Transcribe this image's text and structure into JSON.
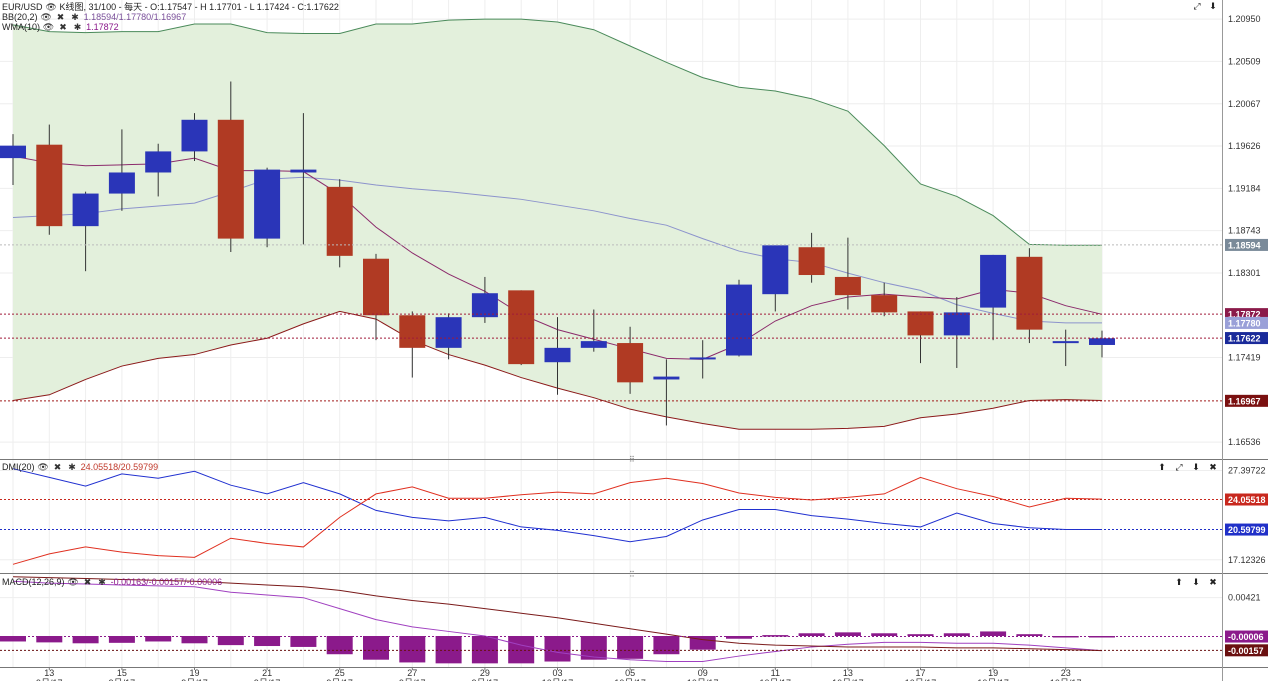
{
  "header": {
    "symbol": "EUR/USD",
    "info": "K线图, 31/100 - 每天 - O:1.17547 - H 1.17701 - L 1.17424 - C:1.17622",
    "bb_name": "BB(20,2)",
    "bb_values": "1.18594/1.17780/1.16967",
    "wma_name": "WMA(10)",
    "wma_value": "1.17872"
  },
  "dmi_header": {
    "name": "DMI(20)",
    "values": "24.05518/20.59799"
  },
  "macd_header": {
    "name": "MACD(12,26,9)",
    "values": "-0.00163/-0.00157/-0.00006"
  },
  "colors": {
    "bull": "#2a35b8",
    "bear": "#b03a23",
    "band_fill": "#e3f0dc",
    "band_line": "#4a8a5a",
    "bb_mid": "#8c93cc",
    "bb_low": "#8b1a1a",
    "wma": "#8b2a6b",
    "dmi_plus": "#e03020",
    "dmi_minus": "#2030d0",
    "macd_hist": "#8b1a8b",
    "macd_line": "#a040c0",
    "macd_signal": "#7a1a1a"
  },
  "chart_data": [
    {
      "type": "candlestick",
      "title": "EUR/USD",
      "ylim": [
        1.1636,
        1.2115
      ],
      "yticks": [
        "1.20950",
        "1.20509",
        "1.20067",
        "1.19626",
        "1.19184",
        "1.18743",
        "1.18301",
        "1.17419",
        "1.16536"
      ],
      "price_tags": [
        {
          "label": "1.18594",
          "style": "gray"
        },
        {
          "label": "1.17872",
          "style": "wma"
        },
        {
          "label": "1.17780",
          "style": "mid"
        },
        {
          "label": "1.17622",
          "style": "last"
        },
        {
          "label": "1.16967",
          "style": "low"
        }
      ],
      "x_labels": [
        {
          "day": "13",
          "month": "9月/17"
        },
        {
          "day": "15",
          "month": "9月/17"
        },
        {
          "day": "19",
          "month": "9月/17"
        },
        {
          "day": "21",
          "month": "9月/17"
        },
        {
          "day": "25",
          "month": "9月/17"
        },
        {
          "day": "27",
          "month": "9月/17"
        },
        {
          "day": "29",
          "month": "9月/17"
        },
        {
          "day": "03",
          "month": "10月/17"
        },
        {
          "day": "05",
          "month": "10月/17"
        },
        {
          "day": "09",
          "month": "10月/17"
        },
        {
          "day": "11",
          "month": "10月/17"
        },
        {
          "day": "13",
          "month": "10月/17"
        },
        {
          "day": "17",
          "month": "10月/17"
        },
        {
          "day": "19",
          "month": "10月/17"
        },
        {
          "day": "23",
          "month": "10月/17"
        }
      ],
      "candles": [
        {
          "o": 1.195,
          "h": 1.1975,
          "l": 1.1922,
          "c": 1.1963
        },
        {
          "o": 1.1964,
          "h": 1.1985,
          "l": 1.187,
          "c": 1.1879
        },
        {
          "o": 1.1879,
          "h": 1.1915,
          "l": 1.1832,
          "c": 1.1913
        },
        {
          "o": 1.1913,
          "h": 1.198,
          "l": 1.1895,
          "c": 1.1935
        },
        {
          "o": 1.1935,
          "h": 1.1965,
          "l": 1.191,
          "c": 1.1957
        },
        {
          "o": 1.1957,
          "h": 1.1997,
          "l": 1.1947,
          "c": 1.199
        },
        {
          "o": 1.199,
          "h": 1.203,
          "l": 1.1852,
          "c": 1.1866
        },
        {
          "o": 1.1866,
          "h": 1.194,
          "l": 1.1857,
          "c": 1.1938
        },
        {
          "o": 1.1935,
          "h": 1.1997,
          "l": 1.186,
          "c": 1.1938
        },
        {
          "o": 1.192,
          "h": 1.1928,
          "l": 1.1836,
          "c": 1.1848
        },
        {
          "o": 1.1845,
          "h": 1.185,
          "l": 1.176,
          "c": 1.1786
        },
        {
          "o": 1.1786,
          "h": 1.179,
          "l": 1.1721,
          "c": 1.1752
        },
        {
          "o": 1.1752,
          "h": 1.1788,
          "l": 1.174,
          "c": 1.1784
        },
        {
          "o": 1.1784,
          "h": 1.1826,
          "l": 1.1778,
          "c": 1.1809
        },
        {
          "o": 1.1812,
          "h": 1.1812,
          "l": 1.1734,
          "c": 1.1735
        },
        {
          "o": 1.1737,
          "h": 1.1784,
          "l": 1.1703,
          "c": 1.1752
        },
        {
          "o": 1.1752,
          "h": 1.1792,
          "l": 1.1748,
          "c": 1.1759
        },
        {
          "o": 1.1757,
          "h": 1.1774,
          "l": 1.1704,
          "c": 1.1716
        },
        {
          "o": 1.1719,
          "h": 1.174,
          "l": 1.1671,
          "c": 1.1722
        },
        {
          "o": 1.174,
          "h": 1.176,
          "l": 1.172,
          "c": 1.1742
        },
        {
          "o": 1.1744,
          "h": 1.1823,
          "l": 1.1743,
          "c": 1.1818
        },
        {
          "o": 1.1808,
          "h": 1.1855,
          "l": 1.179,
          "c": 1.1859
        },
        {
          "o": 1.1857,
          "h": 1.1872,
          "l": 1.182,
          "c": 1.1828
        },
        {
          "o": 1.1826,
          "h": 1.1867,
          "l": 1.1792,
          "c": 1.1807
        },
        {
          "o": 1.1807,
          "h": 1.182,
          "l": 1.1785,
          "c": 1.1789
        },
        {
          "o": 1.179,
          "h": 1.179,
          "l": 1.1736,
          "c": 1.1765
        },
        {
          "o": 1.1765,
          "h": 1.1805,
          "l": 1.1731,
          "c": 1.1789
        },
        {
          "o": 1.1794,
          "h": 1.1849,
          "l": 1.176,
          "c": 1.1849
        },
        {
          "o": 1.1847,
          "h": 1.1856,
          "l": 1.1757,
          "c": 1.1771
        },
        {
          "o": 1.1759,
          "h": 1.1771,
          "l": 1.1733,
          "c": 1.1759
        },
        {
          "o": 1.1755,
          "h": 1.177,
          "l": 1.1742,
          "c": 1.1762
        }
      ],
      "bb_upper": [
        1.2089,
        1.2082,
        1.2081,
        1.2082,
        1.2082,
        1.209,
        1.209,
        1.2081,
        1.208,
        1.208,
        1.209,
        1.209,
        1.2094,
        1.2095,
        1.2095,
        1.2092,
        1.2084,
        1.2067,
        1.205,
        1.2034,
        1.2024,
        1.202,
        1.2012,
        1.1999,
        1.1963,
        1.1923,
        1.191,
        1.189,
        1.186,
        1.1859,
        1.1859
      ],
      "bb_mid": [
        1.1888,
        1.189,
        1.1892,
        1.1897,
        1.19,
        1.1903,
        1.1915,
        1.1928,
        1.193,
        1.1927,
        1.1922,
        1.1918,
        1.1915,
        1.1911,
        1.1907,
        1.1901,
        1.1895,
        1.1887,
        1.188,
        1.1866,
        1.1853,
        1.1845,
        1.1841,
        1.183,
        1.182,
        1.1812,
        1.1797,
        1.1788,
        1.178,
        1.1778,
        1.1778
      ],
      "bb_lower": [
        1.1697,
        1.1703,
        1.1719,
        1.1733,
        1.1741,
        1.1745,
        1.1755,
        1.1762,
        1.1777,
        1.179,
        1.1782,
        1.176,
        1.1745,
        1.1734,
        1.1721,
        1.171,
        1.17,
        1.1688,
        1.168,
        1.1673,
        1.1667,
        1.1667,
        1.1667,
        1.1668,
        1.167,
        1.1679,
        1.1683,
        1.1689,
        1.1697,
        1.1698,
        1.1697
      ],
      "wma": [
        1.1952,
        1.1945,
        1.1942,
        1.1943,
        1.1944,
        1.195,
        1.1937,
        1.1937,
        1.1936,
        1.1912,
        1.1878,
        1.1851,
        1.1829,
        1.1811,
        1.1787,
        1.1771,
        1.1761,
        1.1751,
        1.1741,
        1.174,
        1.1756,
        1.178,
        1.1796,
        1.1805,
        1.1808,
        1.1805,
        1.1803,
        1.1813,
        1.1809,
        1.1796,
        1.1787
      ]
    },
    {
      "type": "line",
      "title": "DMI(20)",
      "ylim": [
        15.6,
        28.6
      ],
      "yticks": [
        "27.39722",
        "17.12326"
      ],
      "price_tags": [
        {
          "label": "24.05518",
          "style": "red"
        },
        {
          "label": "20.59799",
          "style": "blue"
        }
      ],
      "series": [
        {
          "name": "+DI",
          "values": [
            27.6,
            26.6,
            25.6,
            27.0,
            26.5,
            27.3,
            25.7,
            24.7,
            26.0,
            24.7,
            22.8,
            22.0,
            21.6,
            22.0,
            20.9,
            20.5,
            19.9,
            19.2,
            19.8,
            21.7,
            22.9,
            22.9,
            22.2,
            21.8,
            21.3,
            20.9,
            22.5,
            21.3,
            20.8,
            20.6,
            20.6
          ]
        },
        {
          "name": "-DI",
          "values": [
            16.6,
            17.8,
            18.6,
            18.0,
            17.6,
            17.4,
            19.6,
            19.0,
            18.6,
            22.0,
            24.7,
            25.5,
            24.2,
            24.2,
            24.6,
            24.9,
            24.7,
            26.0,
            26.5,
            25.9,
            24.8,
            24.3,
            24.0,
            24.3,
            24.7,
            26.6,
            25.3,
            24.4,
            23.2,
            24.2,
            24.1
          ]
        }
      ]
    },
    {
      "type": "bar",
      "title": "MACD(12,26,9)",
      "ylim": [
        -0.0034,
        0.0068
      ],
      "yticks": [
        "0.00421"
      ],
      "price_tags": [
        {
          "label": "-0.00006",
          "style": "purple"
        },
        {
          "label": "-0.00157",
          "style": "maroon"
        }
      ],
      "histogram": [
        -0.0006,
        -0.0007,
        -0.0008,
        -0.00075,
        -0.0006,
        -0.0008,
        -0.001,
        -0.0011,
        -0.0012,
        -0.002,
        -0.0026,
        -0.0029,
        -0.003,
        -0.003,
        -0.003,
        -0.0028,
        -0.0026,
        -0.0025,
        -0.002,
        -0.0015,
        -0.0003,
        0.0001,
        0.0003,
        0.0004,
        0.0003,
        0.0002,
        0.0003,
        0.0005,
        0.0002,
        -5e-05,
        -6e-05
      ],
      "series": [
        {
          "name": "MACD",
          "values": [
            0.006,
            0.0058,
            0.0057,
            0.0056,
            0.0055,
            0.0054,
            0.0048,
            0.0045,
            0.0042,
            0.003,
            0.0018,
            0.001,
            0.0005,
            0.0,
            -0.001,
            -0.0018,
            -0.0023,
            -0.0026,
            -0.0028,
            -0.0028,
            -0.0022,
            -0.0017,
            -0.0012,
            -0.0009,
            -0.0007,
            -0.0007,
            -0.0008,
            -0.0008,
            -0.001,
            -0.0013,
            -0.0016
          ]
        },
        {
          "name": "Signal",
          "values": [
            0.0065,
            0.0064,
            0.0063,
            0.0062,
            0.0061,
            0.006,
            0.0058,
            0.0056,
            0.0054,
            0.005,
            0.0044,
            0.0039,
            0.0035,
            0.003,
            0.0025,
            0.002,
            0.0014,
            0.0008,
            0.0002,
            -0.0004,
            -0.0008,
            -0.001,
            -0.0011,
            -0.0012,
            -0.0012,
            -0.0012,
            -0.0013,
            -0.0013,
            -0.0014,
            -0.0015,
            -0.0016
          ]
        }
      ]
    }
  ]
}
